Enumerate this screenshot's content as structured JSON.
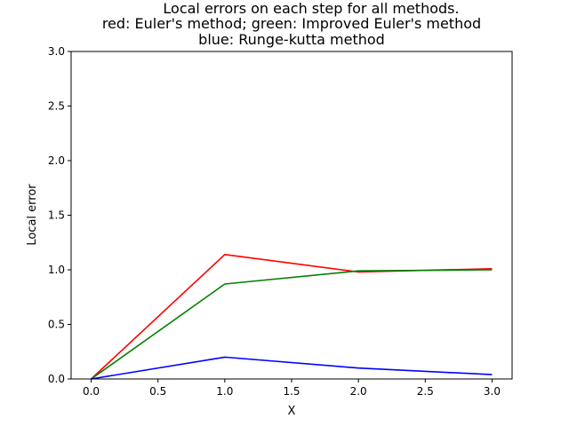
{
  "chart_data": {
    "type": "line",
    "title_lines": [
      "Local errors on each step for all methods.",
      "red: Euler's method; green: Improved Euler's method",
      "blue: Runge-kutta method"
    ],
    "xlabel": "X",
    "ylabel": "Local error",
    "xlim": [
      -0.15,
      3.15
    ],
    "ylim": [
      0.0,
      3.0
    ],
    "xticks": [
      0.0,
      0.5,
      1.0,
      1.5,
      2.0,
      2.5,
      3.0
    ],
    "xtick_labels": [
      "0.0",
      "0.5",
      "1.0",
      "1.5",
      "2.0",
      "2.5",
      "3.0"
    ],
    "yticks": [
      0.0,
      0.5,
      1.0,
      1.5,
      2.0,
      2.5,
      3.0
    ],
    "ytick_labels": [
      "0.0",
      "0.5",
      "1.0",
      "1.5",
      "2.0",
      "2.5",
      "3.0"
    ],
    "grid": false,
    "x": [
      0.0,
      1.0,
      2.0,
      3.0
    ],
    "series": [
      {
        "color": "#ff0000",
        "values": [
          0.0,
          1.14,
          0.98,
          1.01
        ]
      },
      {
        "color": "#008000",
        "values": [
          0.0,
          0.87,
          0.99,
          1.0
        ]
      },
      {
        "color": "#0000ff",
        "values": [
          0.0,
          0.2,
          0.1,
          0.04
        ]
      }
    ]
  }
}
